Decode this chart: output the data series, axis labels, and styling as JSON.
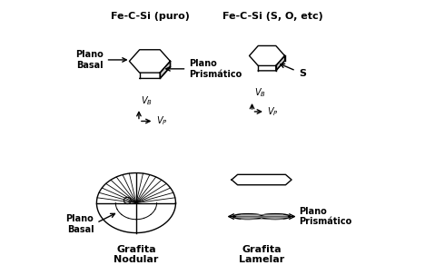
{
  "bg_color": "#ffffff",
  "text_color": "#000000",
  "left_title": "Fe-C-Si (puro)",
  "right_title": "Fe-C-Si (S, O, etc)",
  "label_plano_basal": "Plano\nBasal",
  "label_plano_prismatico": "Plano\nPrismático",
  "label_s": "S",
  "label_vb": "V",
  "label_b": "B",
  "label_vp": "V",
  "label_p": "P",
  "label_grafita_nodular": "Grafita\nNodular",
  "label_grafita_lamelar": "Grafita\nLamelar",
  "label_plano_basal_low": "Plano\nBasal",
  "label_plano_prismatico_low": "Plano\nPrismático",
  "gray_fill": "#cccccc",
  "dark_gray": "#888888"
}
